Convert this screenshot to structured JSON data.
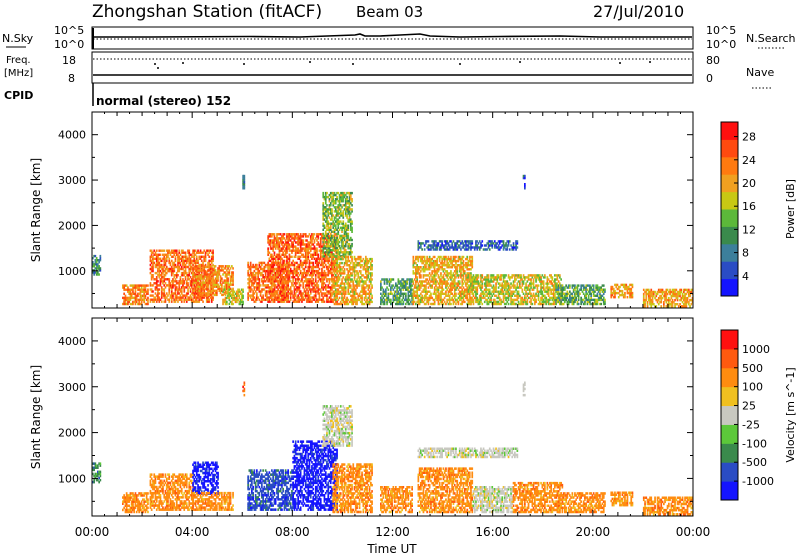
{
  "header": {
    "station": "Zhongshan Station (fitACF)",
    "beam": "Beam 03",
    "date": "27/Jul/2010"
  },
  "status_panel": {
    "left_labels": {
      "nsky": "N.Sky",
      "freq": "Freq.",
      "freq_unit": "[MHz]",
      "cpid": "CPID"
    },
    "right_labels": {
      "nsearch": "N.Search",
      "nave": "Nave"
    },
    "sky_ticks_left": [
      "10^5",
      "10^0"
    ],
    "sky_ticks_right": [
      "10^5",
      "10^0"
    ],
    "freq_ticks": [
      "18",
      "8"
    ],
    "nave_ticks": [
      "80",
      "0"
    ],
    "cpid_text": "normal (stereo) 152"
  },
  "chart_data": [
    {
      "type": "heatmap",
      "name": "power",
      "ylabel": "Slant Range [km]",
      "yticks": [
        "1000",
        "2000",
        "3000",
        "4000"
      ],
      "ylim": [
        180,
        4500
      ],
      "xticks": [
        "00:00",
        "04:00",
        "08:00",
        "12:00",
        "16:00",
        "20:00",
        "00:00"
      ],
      "xlim_hours": [
        0,
        24
      ],
      "colorbar": {
        "label": "Power [dB]",
        "ticks": [
          "4",
          "8",
          "12",
          "16",
          "20",
          "24",
          "28"
        ],
        "range": [
          0,
          30
        ],
        "colors": [
          "#1414ff",
          "#2a4cc4",
          "#3c7f9b",
          "#3a8a4c",
          "#5cb83a",
          "#c8c814",
          "#f0a020",
          "#ff7a10",
          "#ff4a10",
          "#ff1010"
        ]
      },
      "clusters": [
        {
          "t": [
            0.0,
            0.35
          ],
          "r": [
            900,
            1350
          ],
          "level": 9
        },
        {
          "t": [
            1.2,
            2.2
          ],
          "r": [
            250,
            700
          ],
          "level": 22
        },
        {
          "t": [
            2.3,
            4.8
          ],
          "r": [
            300,
            1450
          ],
          "level": 23
        },
        {
          "t": [
            4.0,
            5.6
          ],
          "r": [
            450,
            1100
          ],
          "level": 22
        },
        {
          "t": [
            5.2,
            6.0
          ],
          "r": [
            250,
            600
          ],
          "level": 17
        },
        {
          "t": [
            6.2,
            7.8
          ],
          "r": [
            300,
            1200
          ],
          "level": 23
        },
        {
          "t": [
            7.0,
            9.8
          ],
          "r": [
            300,
            1800
          ],
          "level": 24
        },
        {
          "t": [
            9.2,
            10.4
          ],
          "r": [
            1300,
            2700
          ],
          "level": 14
        },
        {
          "t": [
            9.6,
            11.2
          ],
          "r": [
            250,
            1300
          ],
          "level": 19
        },
        {
          "t": [
            11.5,
            12.8
          ],
          "r": [
            250,
            800
          ],
          "level": 11
        },
        {
          "t": [
            13.0,
            17.0
          ],
          "r": [
            1450,
            1650
          ],
          "level": 6
        },
        {
          "t": [
            12.8,
            15.2
          ],
          "r": [
            250,
            1300
          ],
          "level": 19
        },
        {
          "t": [
            15.0,
            18.8
          ],
          "r": [
            250,
            900
          ],
          "level": 17
        },
        {
          "t": [
            18.5,
            20.5
          ],
          "r": [
            250,
            700
          ],
          "level": 12
        },
        {
          "t": [
            20.7,
            21.6
          ],
          "r": [
            400,
            700
          ],
          "level": 20
        },
        {
          "t": [
            22.0,
            24.0
          ],
          "r": [
            200,
            600
          ],
          "level": 20
        },
        {
          "t": [
            6.0,
            6.1
          ],
          "r": [
            2800,
            3100
          ],
          "level": 6
        },
        {
          "t": [
            17.2,
            17.3
          ],
          "r": [
            2800,
            3100
          ],
          "level": 6
        }
      ]
    },
    {
      "type": "heatmap",
      "name": "velocity",
      "ylabel": "Slant Range [km]",
      "yticks": [
        "1000",
        "2000",
        "3000",
        "4000"
      ],
      "ylim": [
        180,
        4500
      ],
      "xticks": [
        "00:00",
        "04:00",
        "08:00",
        "12:00",
        "16:00",
        "20:00",
        "00:00"
      ],
      "xlim_hours": [
        0,
        24
      ],
      "xlabel": "Time UT",
      "colorbar": {
        "label": "Velocity [m s^-1]",
        "ticks": [
          "1000",
          "500",
          "100",
          "25",
          "-25",
          "-100",
          "-500",
          "-1000"
        ],
        "colors": [
          "#1414ff",
          "#2a4cc4",
          "#3a8a4c",
          "#5cc83a",
          "#c8c8c0",
          "#f0c020",
          "#ff8c10",
          "#ff5a10",
          "#ff1010"
        ]
      },
      "clusters": [
        {
          "t": [
            0.0,
            0.35
          ],
          "r": [
            900,
            1350
          ],
          "level": 2
        },
        {
          "t": [
            1.2,
            2.2
          ],
          "r": [
            250,
            700
          ],
          "level": 6
        },
        {
          "t": [
            2.3,
            4.0
          ],
          "r": [
            300,
            1100
          ],
          "level": 6
        },
        {
          "t": [
            4.0,
            5.0
          ],
          "r": [
            650,
            1350
          ],
          "level": 0
        },
        {
          "t": [
            4.0,
            5.6
          ],
          "r": [
            300,
            700
          ],
          "level": 6
        },
        {
          "t": [
            6.2,
            8.0
          ],
          "r": [
            300,
            1200
          ],
          "level": 1
        },
        {
          "t": [
            8.0,
            9.8
          ],
          "r": [
            300,
            1800
          ],
          "level": 0
        },
        {
          "t": [
            9.2,
            10.4
          ],
          "r": [
            1700,
            2600
          ],
          "level": 4
        },
        {
          "t": [
            9.6,
            11.2
          ],
          "r": [
            250,
            1300
          ],
          "level": 6
        },
        {
          "t": [
            11.5,
            12.8
          ],
          "r": [
            250,
            800
          ],
          "level": 6
        },
        {
          "t": [
            13.0,
            17.0
          ],
          "r": [
            1450,
            1650
          ],
          "level": 4
        },
        {
          "t": [
            13.0,
            15.2
          ],
          "r": [
            250,
            1200
          ],
          "level": 6
        },
        {
          "t": [
            15.2,
            16.8
          ],
          "r": [
            250,
            800
          ],
          "level": 4
        },
        {
          "t": [
            16.8,
            18.8
          ],
          "r": [
            250,
            900
          ],
          "level": 6
        },
        {
          "t": [
            18.5,
            20.5
          ],
          "r": [
            250,
            700
          ],
          "level": 6
        },
        {
          "t": [
            20.7,
            21.6
          ],
          "r": [
            400,
            700
          ],
          "level": 6
        },
        {
          "t": [
            22.0,
            24.0
          ],
          "r": [
            200,
            600
          ],
          "level": 6
        },
        {
          "t": [
            6.0,
            6.1
          ],
          "r": [
            2800,
            3100
          ],
          "level": 7
        },
        {
          "t": [
            17.2,
            17.3
          ],
          "r": [
            2800,
            3100
          ],
          "level": 4
        }
      ]
    }
  ]
}
